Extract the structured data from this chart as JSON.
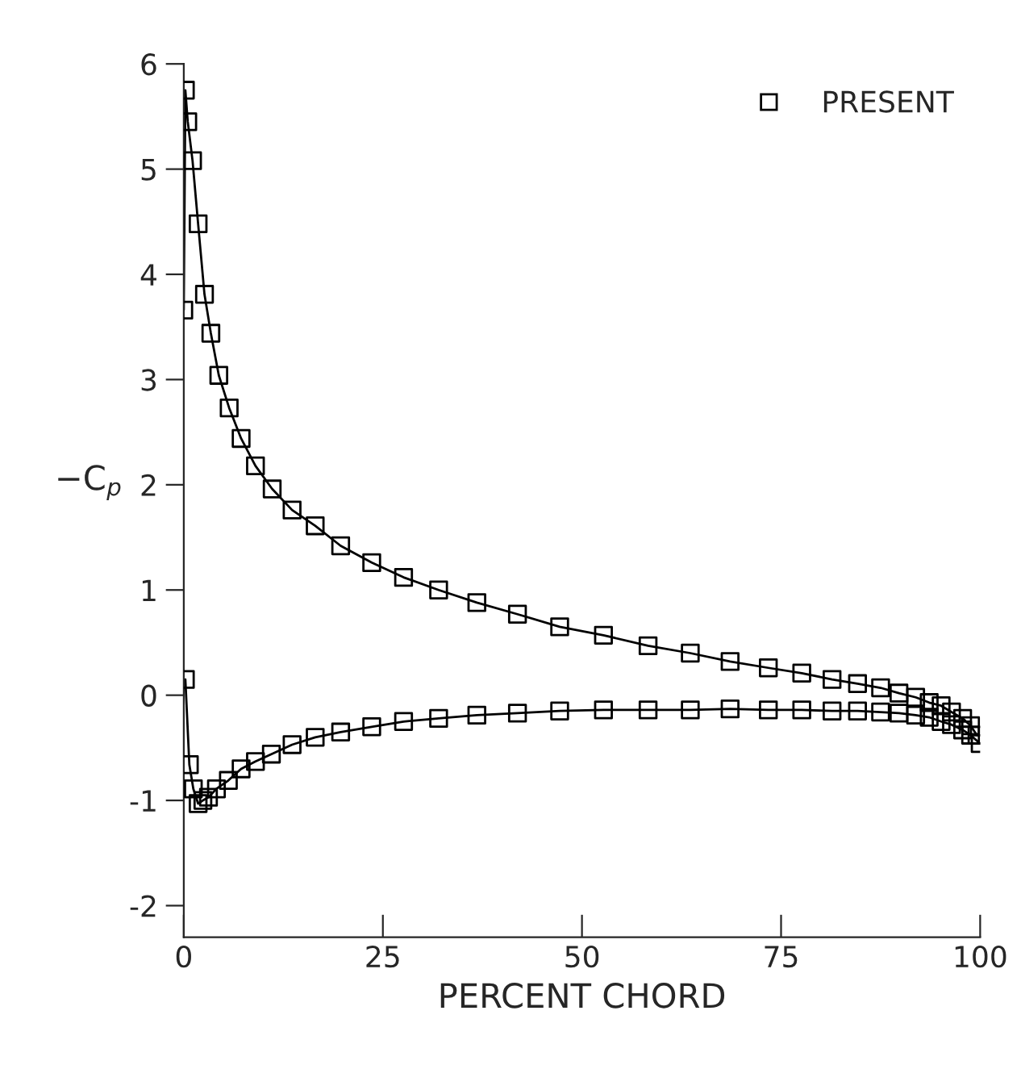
{
  "chart_data": {
    "type": "scatter",
    "xlabel": "PERCENT CHORD",
    "ylabel": "−C$_{p}$",
    "xlim": [
      0,
      100
    ],
    "ylim": [
      -2.3,
      6
    ],
    "xticks": [
      0,
      25,
      50,
      75,
      100
    ],
    "yticks": [
      -2,
      -1,
      0,
      1,
      2,
      3,
      4,
      5,
      6
    ],
    "grid": false,
    "legend": "top right",
    "series": [
      {
        "type": "line",
        "color": "#000000",
        "marker": "none",
        "line_style": "solid",
        "x": [
          0,
          0.2,
          0.5,
          1.1,
          1.8,
          2.6,
          3.4,
          4.4,
          5.7,
          7.2,
          9.0,
          11.1,
          13.6,
          16.5,
          19.7,
          23.6,
          27.6,
          32.0,
          36.8,
          41.9,
          47.2,
          52.7,
          58.3,
          63.6,
          68.6,
          73.4,
          77.6,
          81.4,
          84.6,
          87.5,
          89.8,
          91.9,
          93.6,
          95.1,
          96.4,
          97.8,
          98.8,
          99.6
        ],
        "values": [
          3.66,
          5.75,
          5.45,
          5.08,
          4.48,
          3.81,
          3.44,
          3.04,
          2.73,
          2.44,
          2.18,
          1.96,
          1.76,
          1.61,
          1.42,
          1.26,
          1.12,
          1.0,
          0.88,
          0.77,
          0.65,
          0.57,
          0.47,
          0.4,
          0.32,
          0.26,
          0.21,
          0.15,
          0.11,
          0.07,
          0.02,
          -0.02,
          -0.07,
          -0.1,
          -0.16,
          -0.22,
          -0.29,
          -0.38
        ]
      },
      {
        "type": "line",
        "color": "#000000",
        "marker": "none",
        "line_style": "solid",
        "x": [
          0.2,
          0.7,
          1.2,
          1.8,
          2.4,
          3.1,
          4.1,
          5.6,
          7.2,
          9.0,
          11.0,
          13.6,
          16.5,
          19.7,
          23.6,
          27.6,
          32.0,
          36.8,
          41.9,
          47.2,
          52.7,
          58.3,
          63.6,
          68.6,
          73.4,
          77.6,
          81.4,
          84.6,
          87.5,
          89.8,
          91.9,
          93.6,
          95.1,
          96.4,
          97.8,
          98.8,
          100
        ],
        "values": [
          0.15,
          -0.66,
          -0.89,
          -1.03,
          -1.0,
          -0.97,
          -0.89,
          -0.81,
          -0.7,
          -0.63,
          -0.56,
          -0.47,
          -0.4,
          -0.35,
          -0.3,
          -0.25,
          -0.22,
          -0.19,
          -0.17,
          -0.15,
          -0.14,
          -0.14,
          -0.14,
          -0.13,
          -0.14,
          -0.14,
          -0.15,
          -0.15,
          -0.16,
          -0.17,
          -0.19,
          -0.21,
          -0.25,
          -0.28,
          -0.33,
          -0.38,
          -0.46
        ]
      },
      {
        "name": "PRESENT",
        "color": "#000000",
        "marker": "square",
        "x": [
          99.6,
          98.8,
          97.8,
          96.4,
          95.1,
          93.6,
          91.9,
          89.8,
          87.5,
          84.6,
          81.4,
          77.6,
          73.4,
          68.6,
          63.6,
          58.3,
          52.7,
          47.2,
          41.9,
          36.8,
          32.0,
          27.6,
          23.6,
          19.7,
          16.5,
          13.6,
          11.1,
          9.0,
          7.2,
          5.7,
          4.4,
          3.4,
          2.6,
          1.8,
          1.1,
          0.5,
          0.2,
          0,
          0.2,
          0.7,
          1.2,
          1.8,
          2.4,
          3.1,
          4.1,
          5.6,
          7.2,
          9.0,
          11.0,
          13.6,
          16.5,
          19.7,
          23.6,
          27.6,
          32.0,
          36.8,
          41.9,
          47.2,
          52.7,
          58.3,
          63.6,
          68.6,
          73.4,
          77.6,
          81.4,
          84.6,
          87.5,
          89.8,
          91.9,
          93.6,
          95.1,
          96.4,
          97.8,
          98.8,
          100
        ],
        "values": [
          -0.38,
          -0.29,
          -0.22,
          -0.16,
          -0.1,
          -0.07,
          -0.02,
          0.02,
          0.07,
          0.11,
          0.15,
          0.21,
          0.26,
          0.32,
          0.4,
          0.47,
          0.57,
          0.65,
          0.77,
          0.88,
          1.0,
          1.12,
          1.26,
          1.42,
          1.61,
          1.76,
          1.96,
          2.18,
          2.44,
          2.73,
          3.04,
          3.44,
          3.81,
          4.48,
          5.08,
          5.45,
          5.75,
          3.66,
          0.15,
          -0.66,
          -0.89,
          -1.03,
          -1.0,
          -0.97,
          -0.89,
          -0.81,
          -0.7,
          -0.63,
          -0.56,
          -0.47,
          -0.4,
          -0.35,
          -0.3,
          -0.25,
          -0.22,
          -0.19,
          -0.17,
          -0.15,
          -0.14,
          -0.14,
          -0.14,
          -0.13,
          -0.14,
          -0.14,
          -0.15,
          -0.15,
          -0.16,
          -0.17,
          -0.19,
          -0.21,
          -0.25,
          -0.28,
          -0.33,
          -0.38,
          -0.46
        ]
      }
    ]
  }
}
